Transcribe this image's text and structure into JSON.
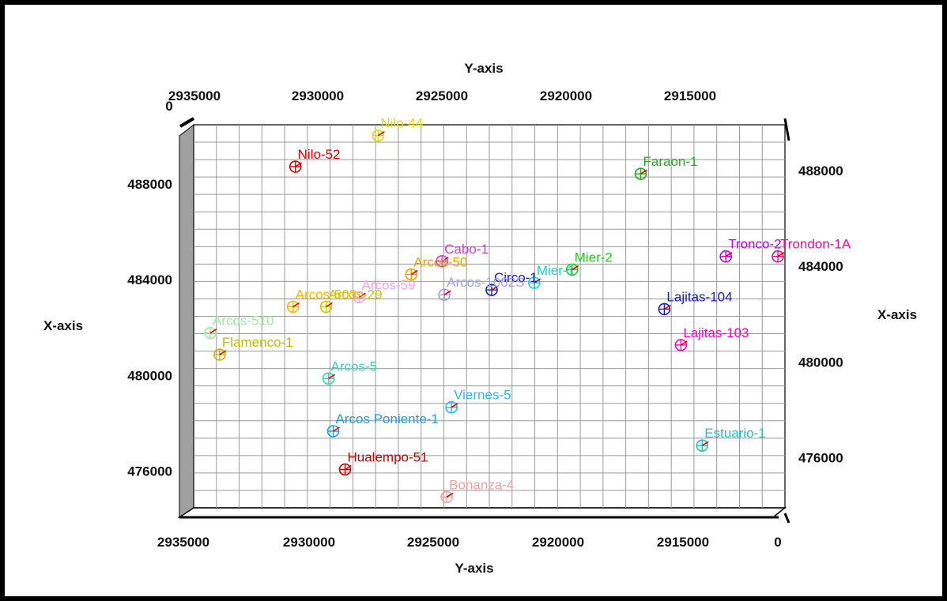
{
  "chart_data": {
    "type": "scatter",
    "title": "",
    "x_axis_title_bottom": "Y-axis",
    "x_axis_title_top": "Y-axis",
    "y_axis_title_left": "X-axis",
    "y_axis_title_right": "X-axis",
    "xlabel": "Y-axis",
    "ylabel": "X-axis",
    "x_reversed": true,
    "xlim": [
      2935000,
      2910000
    ],
    "ylim": [
      474500,
      490500
    ],
    "x_ticks_bottom": [
      "2935000",
      "2930000",
      "2925000",
      "2920000",
      "2915000",
      "0"
    ],
    "x_ticks_top": [
      "2935000",
      "2930000",
      "2925000",
      "2920000",
      "2915000",
      "0"
    ],
    "y_ticks_left": [
      "488000",
      "484000",
      "480000",
      "476000"
    ],
    "y_ticks_right": [
      "488000",
      "484000",
      "480000",
      "476000"
    ],
    "grid": true,
    "wells": [
      {
        "name": "Nilo-44",
        "x": 2927200,
        "y": 490050,
        "color": "#e8d800"
      },
      {
        "name": "Nilo-52",
        "x": 2930700,
        "y": 488750,
        "color": "#e00000"
      },
      {
        "name": "Faraon-1",
        "x": 2916100,
        "y": 488450,
        "color": "#22aa22"
      },
      {
        "name": "Cabo-1",
        "x": 2924500,
        "y": 484800,
        "color": "#cc44cc"
      },
      {
        "name": "Arcos-50",
        "x": 2925800,
        "y": 484250,
        "color": "#f0a000"
      },
      {
        "name": "Mier-2",
        "x": 2919000,
        "y": 484450,
        "color": "#22cc22"
      },
      {
        "name": "Mier-1",
        "x": 2920600,
        "y": 483900,
        "color": "#22cccc"
      },
      {
        "name": "Circo-1",
        "x": 2922400,
        "y": 483600,
        "color": "#1a1ac8"
      },
      {
        "name": "Arcos-1002S",
        "x": 2924400,
        "y": 483400,
        "color": "#a0a0e6"
      },
      {
        "name": "Arcos-59",
        "x": 2928000,
        "y": 483300,
        "color": "#ffa0f0"
      },
      {
        "name": "Arcos-29",
        "x": 2929400,
        "y": 482900,
        "color": "#c8c800"
      },
      {
        "name": "Arcos-503",
        "x": 2930800,
        "y": 482900,
        "color": "#ffb400"
      },
      {
        "name": "Arcos-510",
        "x": 2934300,
        "y": 481800,
        "color": "#a0e8a0"
      },
      {
        "name": "Flamenco-1",
        "x": 2933900,
        "y": 480900,
        "color": "#c8b400"
      },
      {
        "name": "Trondon-1A",
        "x": 2910300,
        "y": 485000,
        "color": "#e0109e"
      },
      {
        "name": "Tronco-2",
        "x": 2912500,
        "y": 485000,
        "color": "#bb00ff"
      },
      {
        "name": "Lajitas-104",
        "x": 2915100,
        "y": 482800,
        "color": "#1a1ac8"
      },
      {
        "name": "Lajitas-103",
        "x": 2914400,
        "y": 481300,
        "color": "#ff00c8"
      },
      {
        "name": "Arcos-5",
        "x": 2929300,
        "y": 479900,
        "color": "#33d6b8"
      },
      {
        "name": "Viernes-5",
        "x": 2924100,
        "y": 478700,
        "color": "#33b4ee"
      },
      {
        "name": "Arcos Poniente-1",
        "x": 2929100,
        "y": 477700,
        "color": "#1a9eee"
      },
      {
        "name": "Estuario-1",
        "x": 2913500,
        "y": 477100,
        "color": "#22c0c0"
      },
      {
        "name": "Hualempo-51",
        "x": 2928600,
        "y": 476100,
        "color": "#c80000"
      },
      {
        "name": "Bonanza-4",
        "x": 2924300,
        "y": 474950,
        "color": "#f0a0a0"
      }
    ],
    "colors": {
      "grid": "#9a9a9a",
      "wall": "#a0a0a0",
      "frame": "#000000",
      "marker_tick": "#e00000"
    }
  }
}
